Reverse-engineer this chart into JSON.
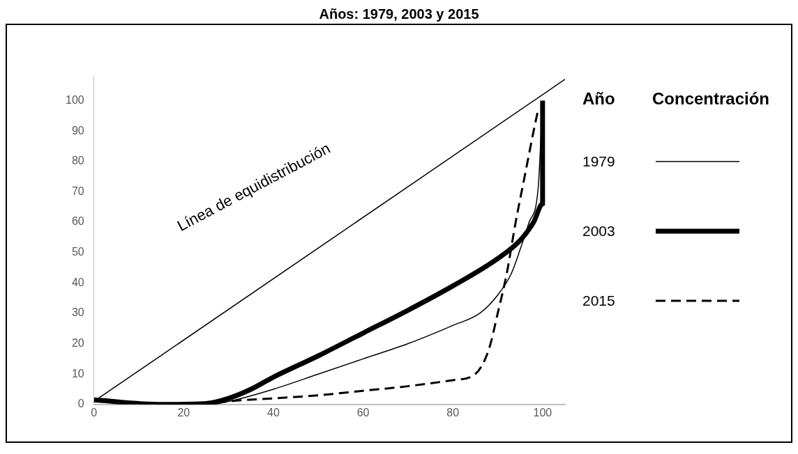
{
  "chart_data": {
    "type": "line",
    "title": "Años: 1979, 2003 y 2015",
    "legend_title": "Año",
    "legend": "right",
    "grid": false,
    "marker": "none",
    "xlim": [
      0,
      105
    ],
    "ylim": [
      0,
      108
    ],
    "xticks": [
      0,
      20,
      40,
      60,
      80,
      100
    ],
    "yticks": [
      0,
      10,
      20,
      30,
      40,
      50,
      60,
      70,
      80,
      90,
      100
    ],
    "annotations": [
      "Línea de equidistribución",
      "Concentración"
    ],
    "series": [
      {
        "color": "#000000",
        "x": [
          0,
          105
        ],
        "values": [
          1,
          107
        ]
      },
      {
        "name": "1979",
        "color": "#000000",
        "x": [
          0,
          25,
          30,
          40,
          50,
          60,
          70,
          80,
          86,
          90,
          93,
          95,
          97,
          99,
          100
        ],
        "values": [
          1,
          0,
          1,
          5,
          10,
          15,
          20,
          26,
          30,
          36,
          43,
          51,
          60,
          71,
          100
        ]
      },
      {
        "name": "2003",
        "color": "#000000",
        "x": [
          0,
          15,
          25,
          30,
          35,
          40,
          50,
          60,
          70,
          80,
          90,
          95,
          98,
          100,
          100
        ],
        "values": [
          1.5,
          0,
          0.3,
          2,
          5,
          9,
          16,
          23.5,
          31,
          39,
          48,
          54,
          60,
          66,
          100
        ]
      },
      {
        "name": "2015",
        "color": "#000000",
        "line_style": "dashed",
        "x": [
          0,
          25,
          30,
          40,
          50,
          60,
          70,
          80,
          85,
          88,
          90,
          92,
          94,
          96,
          98,
          99
        ],
        "values": [
          1,
          0,
          1,
          2,
          3,
          4.5,
          6,
          8,
          10,
          18,
          30,
          43,
          60,
          75,
          90,
          97
        ]
      }
    ]
  }
}
